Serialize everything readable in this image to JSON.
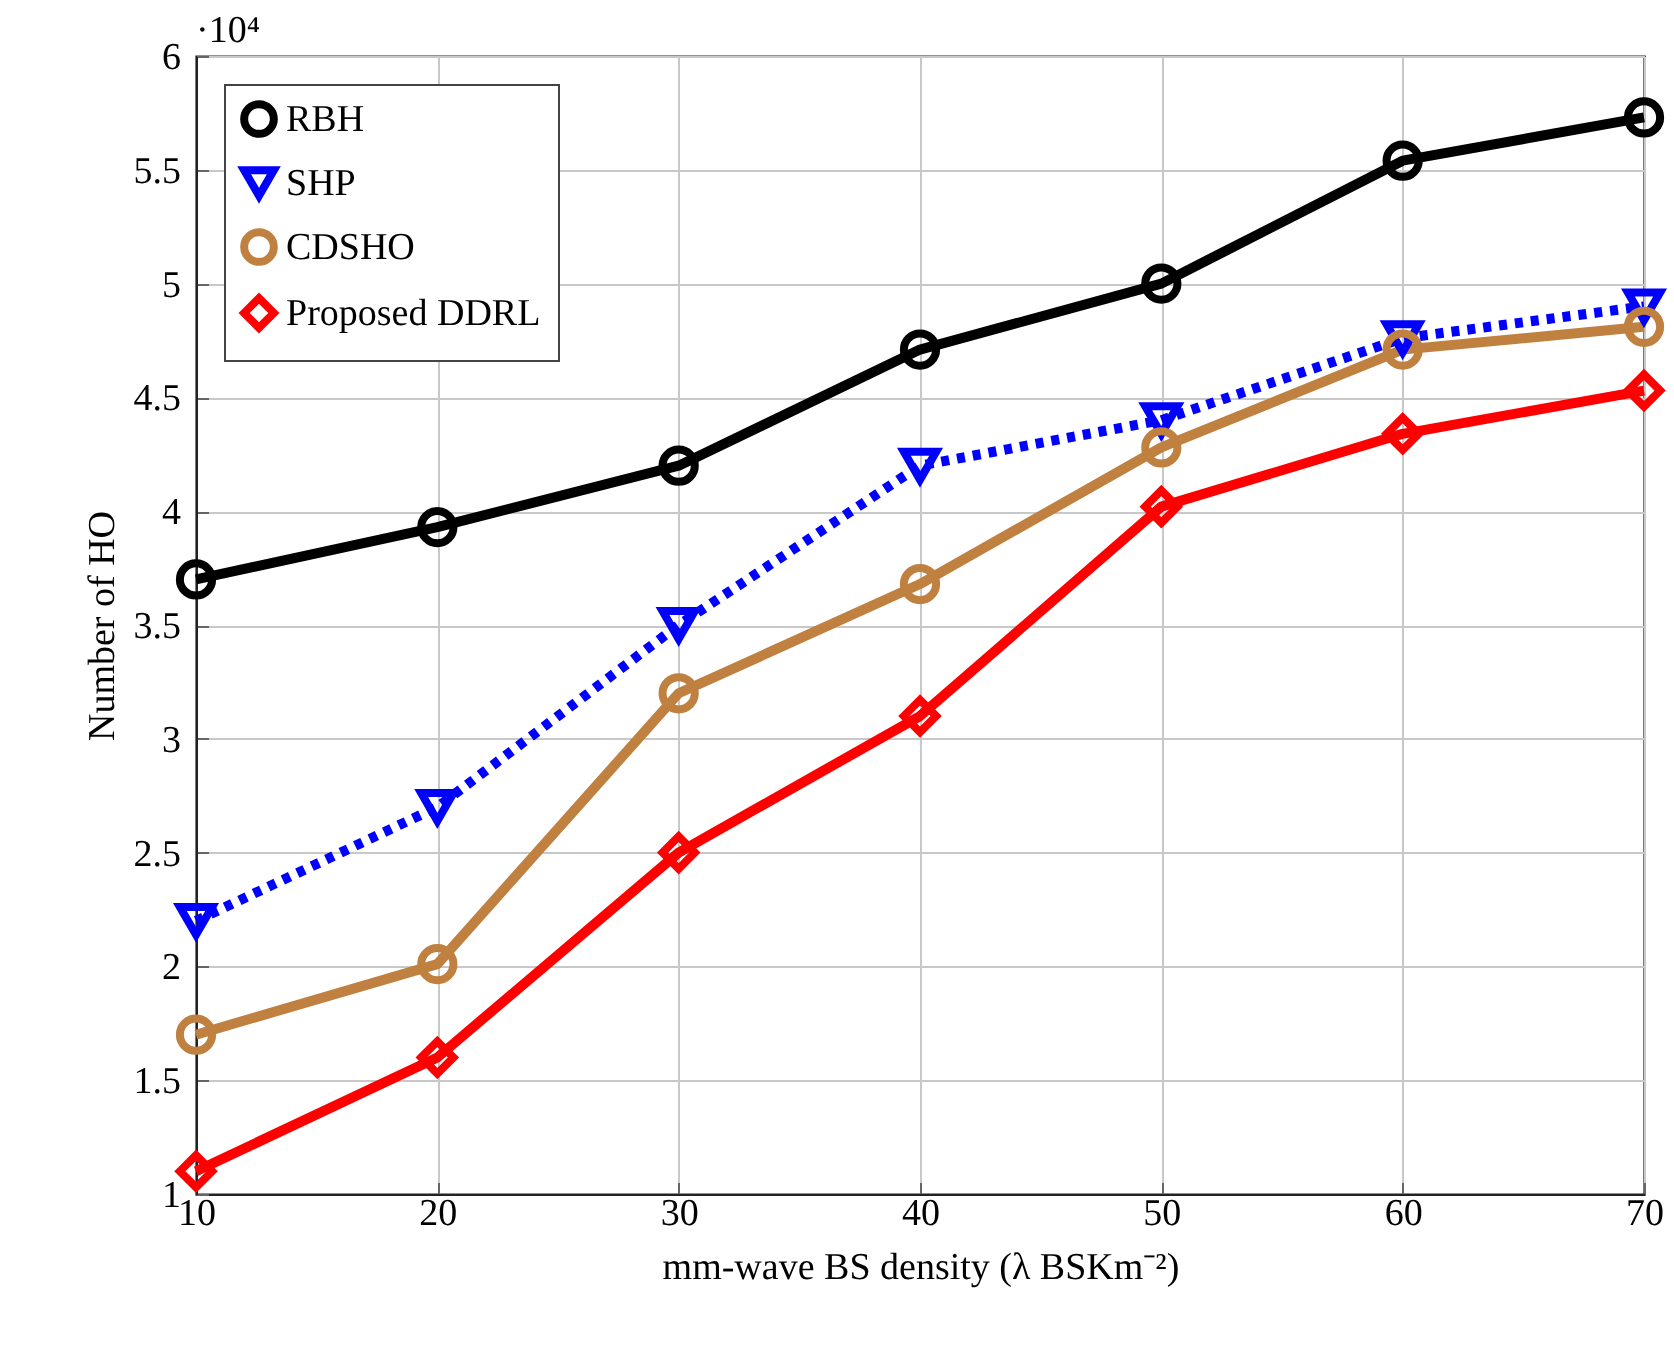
{
  "chart_data": {
    "type": "line",
    "xlabel": "mm-wave BS density (λ BSKm⁻²)",
    "ylabel": "Number of HO",
    "annotations": [
      "·10⁴"
    ],
    "x": [
      10,
      20,
      30,
      40,
      50,
      60,
      70
    ],
    "series": [
      {
        "name": "RBH",
        "color": "#000000",
        "marker": "circle",
        "line_style": "solid",
        "values": [
          3.7,
          3.93,
          4.2,
          4.71,
          5.0,
          5.54,
          5.73
        ]
      },
      {
        "name": "SHP",
        "color": "#0000ff",
        "marker": "triangle",
        "line_style": "dotted",
        "values": [
          2.2,
          2.7,
          3.5,
          4.2,
          4.4,
          4.76,
          4.9
        ]
      },
      {
        "name": "CDSHO",
        "color": "#bf8040",
        "marker": "circle",
        "line_style": "solid",
        "values": [
          1.7,
          2.01,
          3.2,
          3.68,
          4.28,
          4.71,
          4.81
        ]
      },
      {
        "name": "Proposed DDRL",
        "color": "#ff0000",
        "marker": "diamond",
        "line_style": "solid",
        "values": [
          1.1,
          1.6,
          2.5,
          3.1,
          4.02,
          4.34,
          4.53
        ]
      }
    ],
    "xlim": [
      10,
      70
    ],
    "xticks": [
      10,
      20,
      30,
      40,
      50,
      60,
      70
    ],
    "ylim": [
      1,
      6
    ],
    "yticks": [
      1,
      1.5,
      2,
      2.5,
      3,
      3.5,
      4,
      4.5,
      5,
      5.5,
      6
    ],
    "grid": true,
    "legend": "top left"
  }
}
